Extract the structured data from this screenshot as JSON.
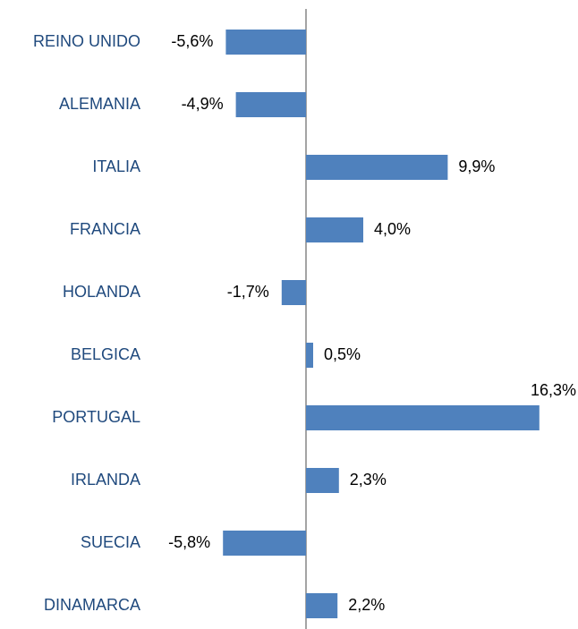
{
  "chart_data": {
    "type": "barh",
    "categories": [
      "REINO UNIDO",
      "ALEMANIA",
      "ITALIA",
      "FRANCIA",
      "HOLANDA",
      "BELGICA",
      "PORTUGAL",
      "IRLANDA",
      "SUECIA",
      "DINAMARCA"
    ],
    "values": [
      -5.6,
      -4.9,
      9.9,
      4.0,
      -1.7,
      0.5,
      16.3,
      2.3,
      -5.8,
      2.2
    ],
    "value_labels": [
      "-5,6%",
      "-4,9%",
      "9,9%",
      "4,0%",
      "-1,7%",
      "0,5%",
      "16,3%",
      "2,3%",
      "-5,8%",
      "2,2%"
    ],
    "color": "#4f81bd"
  }
}
